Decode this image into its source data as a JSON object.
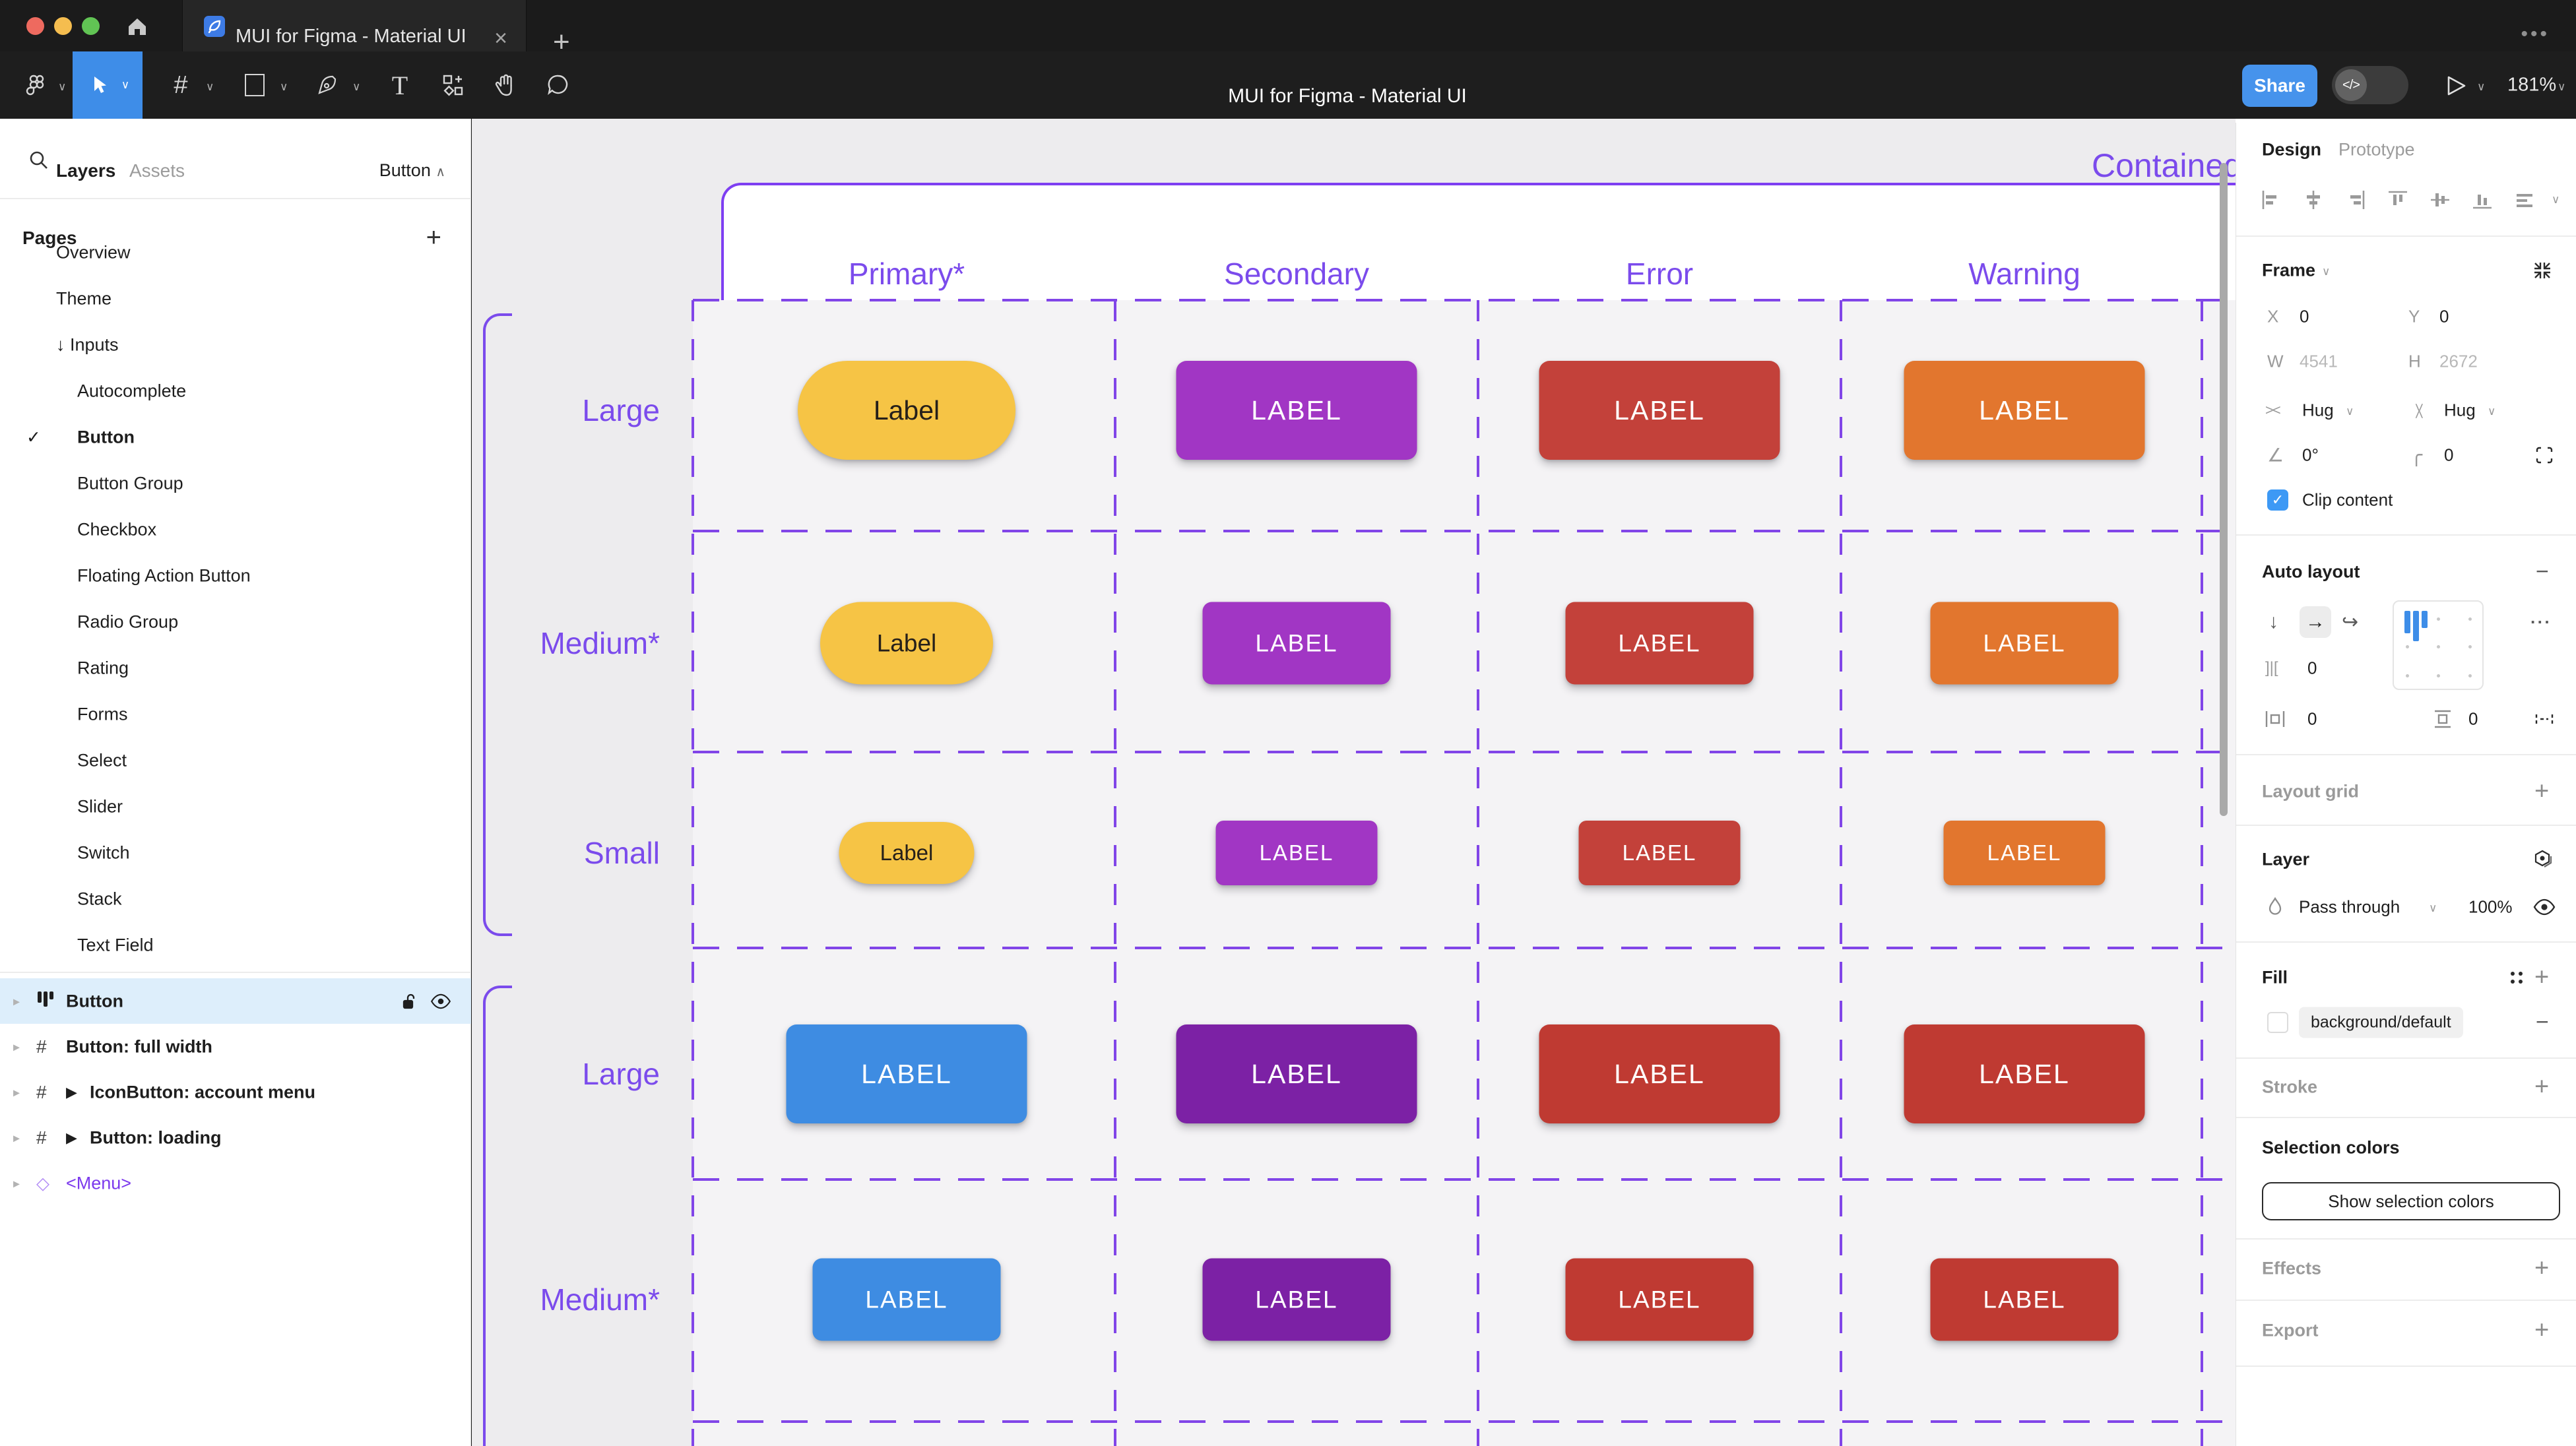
{
  "window": {
    "tab_title": "MUI for Figma - Material UI",
    "toolbar_title": "MUI for Figma - Material UI",
    "close_glyph": "×",
    "new_tab_glyph": "+",
    "share_label": "Share",
    "dev_toggle_glyph": "</>",
    "zoom_level": "181%"
  },
  "sidebar": {
    "tabs": {
      "layers": "Layers",
      "assets": "Assets"
    },
    "page_indicator": "Button",
    "pages_header": "Pages",
    "pages_add_glyph": "+",
    "pages": [
      {
        "label": "Overview",
        "indent": 1
      },
      {
        "label": "Theme",
        "indent": 1
      },
      {
        "label": "Inputs",
        "indent": 1,
        "prefix": "↓"
      },
      {
        "label": "Autocomplete",
        "indent": 2
      },
      {
        "label": "Button",
        "indent": 2,
        "selected": true
      },
      {
        "label": "Button Group",
        "indent": 2
      },
      {
        "label": "Checkbox",
        "indent": 2
      },
      {
        "label": "Floating Action Button",
        "indent": 2
      },
      {
        "label": "Radio Group",
        "indent": 2
      },
      {
        "label": "Rating",
        "indent": 2
      },
      {
        "label": "Forms",
        "indent": 2
      },
      {
        "label": "Select",
        "indent": 2
      },
      {
        "label": "Slider",
        "indent": 2
      },
      {
        "label": "Switch",
        "indent": 2
      },
      {
        "label": "Stack",
        "indent": 2
      },
      {
        "label": "Text Field",
        "indent": 2
      }
    ],
    "layers": [
      {
        "label": "Button",
        "icon": "auto-layout",
        "selected": true
      },
      {
        "label": "Button: full width",
        "icon": "frame"
      },
      {
        "label": "IconButton: account menu",
        "icon": "frame",
        "play": true
      },
      {
        "label": "Button: loading",
        "icon": "frame",
        "play": true
      },
      {
        "label": "<Menu>",
        "icon": "instance",
        "purple": true
      }
    ]
  },
  "canvas": {
    "section_label": "Contained",
    "annotation_color": "#7B4BEC",
    "columns": [
      "Primary*",
      "Secondary",
      "Error",
      "Warning"
    ],
    "rows": [
      {
        "label": "Large",
        "size": "large",
        "buttons": [
          {
            "bg": "#F6C445",
            "fg": "#26201A",
            "text": "Label",
            "pill": true
          },
          {
            "bg": "#A136C4",
            "fg": "#FFFFFF",
            "text": "LABEL"
          },
          {
            "bg": "#C3413A",
            "fg": "#FFFFFF",
            "text": "LABEL"
          },
          {
            "bg": "#E2762E",
            "fg": "#FFFFFF",
            "text": "LABEL"
          }
        ]
      },
      {
        "label": "Medium*",
        "size": "medium",
        "buttons": [
          {
            "bg": "#F6C445",
            "fg": "#26201A",
            "text": "Label",
            "pill": true
          },
          {
            "bg": "#A136C4",
            "fg": "#FFFFFF",
            "text": "LABEL"
          },
          {
            "bg": "#C3413A",
            "fg": "#FFFFFF",
            "text": "LABEL"
          },
          {
            "bg": "#E2762E",
            "fg": "#FFFFFF",
            "text": "LABEL"
          }
        ]
      },
      {
        "label": "Small",
        "size": "small",
        "buttons": [
          {
            "bg": "#F6C445",
            "fg": "#26201A",
            "text": "Label",
            "pill": true
          },
          {
            "bg": "#A136C4",
            "fg": "#FFFFFF",
            "text": "LABEL"
          },
          {
            "bg": "#C3413A",
            "fg": "#FFFFFF",
            "text": "LABEL"
          },
          {
            "bg": "#E2762E",
            "fg": "#FFFFFF",
            "text": "LABEL"
          }
        ]
      },
      {
        "label": "Large",
        "size": "large",
        "buttons": [
          {
            "bg": "#3E8CE2",
            "fg": "#FFFFFF",
            "text": "LABEL"
          },
          {
            "bg": "#7C21A5",
            "fg": "#FFFFFF",
            "text": "LABEL"
          },
          {
            "bg": "#BF3A32",
            "fg": "#FFFFFF",
            "text": "LABEL"
          },
          {
            "bg": "#BF3A32",
            "fg": "#FFFFFF",
            "text": "LABEL"
          }
        ]
      },
      {
        "label": "Medium*",
        "size": "medium",
        "buttons": [
          {
            "bg": "#3E8CE2",
            "fg": "#FFFFFF",
            "text": "LABEL"
          },
          {
            "bg": "#7C21A5",
            "fg": "#FFFFFF",
            "text": "LABEL"
          },
          {
            "bg": "#BF3A32",
            "fg": "#FFFFFF",
            "text": "LABEL"
          },
          {
            "bg": "#BF3A32",
            "fg": "#FFFFFF",
            "text": "LABEL"
          }
        ]
      }
    ]
  },
  "panel": {
    "tabs": {
      "design": "Design",
      "prototype": "Prototype"
    },
    "frame": {
      "title": "Frame",
      "x_label": "X",
      "x_value": "0",
      "y_label": "Y",
      "y_value": "0",
      "w_label": "W",
      "w_value": "4541",
      "h_label": "H",
      "h_value": "2672",
      "h_sizing": "Hug",
      "v_sizing": "Hug",
      "rotation": "0°",
      "corner_radius": "0",
      "clip_label": "Clip content",
      "check_glyph": "✓"
    },
    "auto_layout": {
      "title": "Auto layout",
      "gap_icon": "]|[",
      "gap": "0",
      "pad_h": "0",
      "pad_v": "0",
      "more_glyph": "···",
      "minus_glyph": "−"
    },
    "layout_grid": {
      "title": "Layout grid",
      "add_glyph": "+"
    },
    "layer": {
      "title": "Layer",
      "blend_mode": "Pass through",
      "opacity": "100%"
    },
    "fill": {
      "title": "Fill",
      "value": "background/default",
      "add_glyph": "+",
      "remove_glyph": "−"
    },
    "stroke": {
      "title": "Stroke",
      "add_glyph": "+"
    },
    "selection_colors": {
      "title": "Selection colors",
      "button_label": "Show selection colors"
    },
    "effects": {
      "title": "Effects",
      "add_glyph": "+"
    },
    "export": {
      "title": "Export",
      "add_glyph": "+"
    }
  }
}
